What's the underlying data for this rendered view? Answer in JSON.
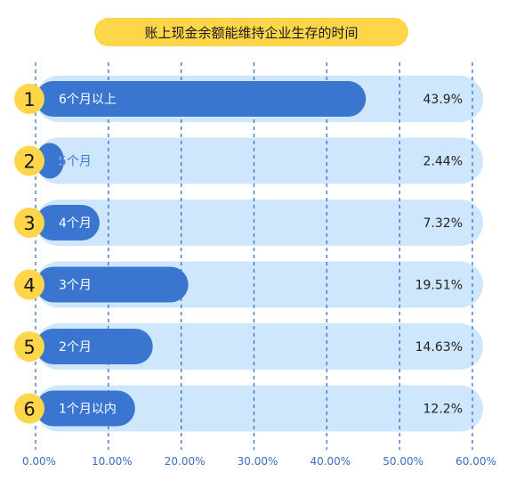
{
  "chart_data": {
    "type": "bar",
    "orientation": "horizontal",
    "title": "账上现金余额能维持企业生存的时间",
    "categories": [
      "6个月以上",
      "5个月",
      "4个月",
      "3个月",
      "2个月",
      "1个月以内"
    ],
    "ranks": [
      "1",
      "2",
      "3",
      "4",
      "5",
      "6"
    ],
    "values": [
      43.9,
      2.44,
      7.32,
      19.51,
      14.63,
      12.2
    ],
    "value_labels": [
      "43.9%",
      "2.44%",
      "7.32%",
      "19.51%",
      "14.63%",
      "12.2%"
    ],
    "xlim": [
      0,
      60
    ],
    "xticks": [
      "0.00%",
      "10.00%",
      "20.00%",
      "30.00%",
      "40.00%",
      "50.00%",
      "60.00%"
    ],
    "grid": true,
    "colors": {
      "bar": "#3a76d0",
      "track": "#cfe7fc",
      "badge": "#ffd54a",
      "grid": "#3a6fc4",
      "tick_text": "#3a6fc4"
    }
  }
}
